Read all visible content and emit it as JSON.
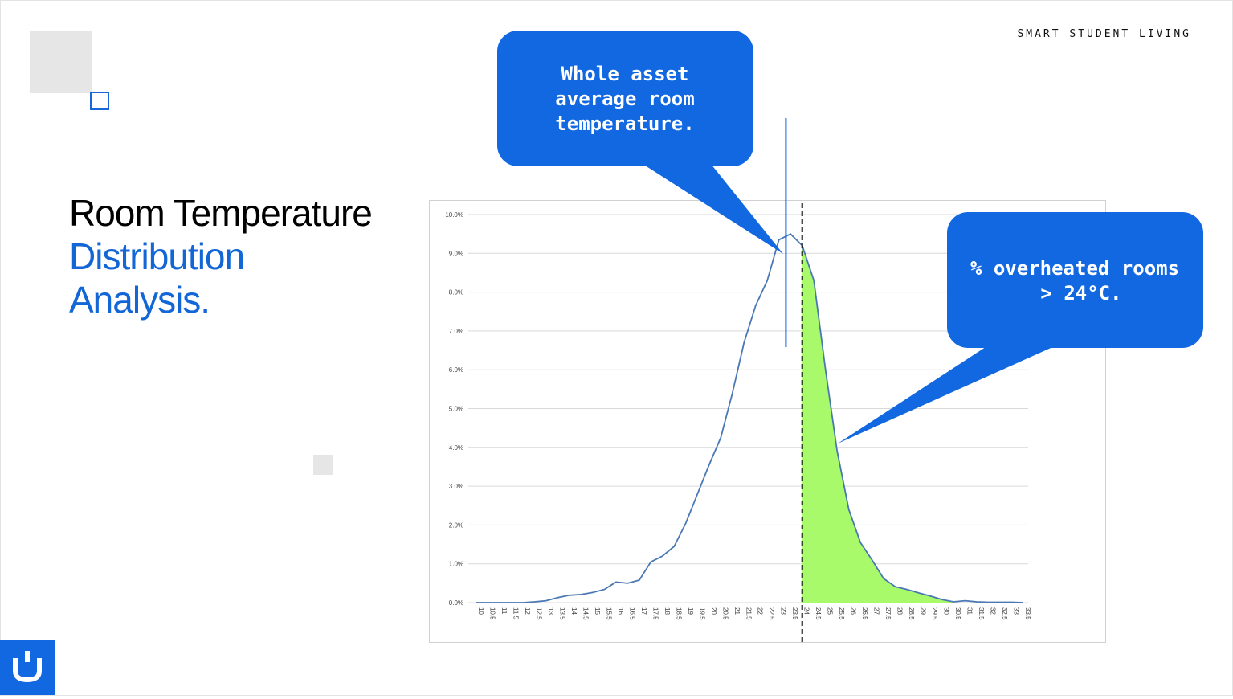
{
  "header": {
    "brand": "SMART STUDENT LIVING"
  },
  "title": {
    "line1": "Room Temperature",
    "line2": "Distribution",
    "line3": "Analysis."
  },
  "callouts": {
    "average": [
      "Whole asset",
      "average room",
      "temperature."
    ],
    "overheated": [
      "% overheated rooms",
      "> 24°C."
    ]
  },
  "colors": {
    "accent": "#1268e1",
    "line": "#4a78b5",
    "fill": "#a8fa6a",
    "grid": "#d9d9d9"
  },
  "chart_data": {
    "type": "area",
    "threshold": 24,
    "average_marker": 23.3,
    "ylim": [
      0,
      10
    ],
    "yticks": [
      "0.0%",
      "1.0%",
      "2.0%",
      "3.0%",
      "4.0%",
      "5.0%",
      "6.0%",
      "7.0%",
      "8.0%",
      "9.0%",
      "10.0%"
    ],
    "x": [
      10,
      10.5,
      11,
      11.5,
      12,
      12.5,
      13,
      13.5,
      14,
      14.5,
      15,
      15.5,
      16,
      16.5,
      17,
      17.5,
      18,
      18.5,
      19,
      19.5,
      20,
      20.5,
      21,
      21.5,
      22,
      22.5,
      23,
      23.5,
      24,
      24.5,
      25,
      25.5,
      26,
      26.5,
      27,
      27.5,
      28,
      28.5,
      29,
      29.5,
      30,
      30.5,
      31,
      31.5,
      32,
      32.5,
      33,
      33.5
    ],
    "xticks": [
      "10",
      "10.5",
      "11",
      "11.5",
      "12",
      "12.5",
      "13",
      "13.5",
      "14",
      "14.5",
      "15",
      "15.5",
      "16",
      "16.5",
      "17",
      "17.5",
      "18",
      "18.5",
      "19",
      "19.5",
      "20",
      "20.5",
      "21",
      "21.5",
      "22",
      "22.5",
      "23",
      "23.5",
      "24",
      "24.5",
      "25",
      "25.5",
      "26",
      "26.5",
      "27",
      "27.5",
      "28",
      "28.5",
      "29",
      "29.5",
      "30",
      "30.5",
      "31",
      "31.5",
      "32",
      "32.5",
      "33",
      "33.5"
    ],
    "values": [
      0,
      0,
      0,
      0,
      0,
      0.02,
      0.05,
      0.13,
      0.19,
      0.21,
      0.26,
      0.34,
      0.53,
      0.5,
      0.58,
      1.05,
      1.2,
      1.45,
      2.05,
      2.8,
      3.55,
      4.25,
      5.4,
      6.7,
      7.65,
      8.3,
      9.35,
      9.5,
      9.2,
      8.3,
      6.0,
      3.9,
      2.4,
      1.55,
      1.1,
      0.62,
      0.41,
      0.34,
      0.25,
      0.17,
      0.08,
      0.02,
      0.05,
      0.02,
      0.01,
      0.01,
      0.01,
      0.0
    ]
  }
}
